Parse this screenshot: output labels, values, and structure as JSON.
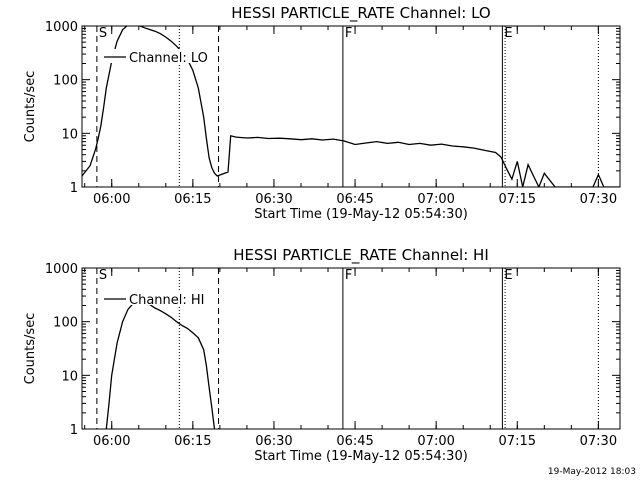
{
  "footer_timestamp": "19-May-2012 18:03",
  "chart_data": [
    {
      "type": "line",
      "title": "HESSI PARTICLE_RATE Channel: LO",
      "xlabel": "Start Time (19-May-12 05:54:30)",
      "ylabel": "Counts/sec",
      "yscale": "log",
      "ylim": [
        1,
        1000
      ],
      "xlim": [
        "05:54:30",
        "07:34:00"
      ],
      "x_ticks": [
        "06:00",
        "06:15",
        "06:30",
        "06:45",
        "07:00",
        "07:15",
        "07:30"
      ],
      "y_ticks": [
        "1",
        "10",
        "100",
        "1000"
      ],
      "legend": "Channel: LO",
      "legend_position": "top-left",
      "grid": false,
      "markers": [
        {
          "label": "S",
          "time": "05:57:15",
          "style": "dashed"
        },
        {
          "label": "",
          "time": "06:19:45",
          "style": "dashed"
        },
        {
          "label": "",
          "time": "06:12:30",
          "style": "dotted"
        },
        {
          "label": "F",
          "time": "06:42:45",
          "style": "solid"
        },
        {
          "label": "E",
          "time": "07:12:15",
          "style": "solid"
        },
        {
          "label": "",
          "time": "07:12:45",
          "style": "dotted"
        },
        {
          "label": "",
          "time": "07:30:00",
          "style": "dotted"
        }
      ],
      "series": [
        {
          "name": "Channel: LO",
          "x": [
            "05:54:30",
            "05:56:00",
            "05:57:00",
            "05:57:30",
            "05:58:00",
            "05:58:30",
            "05:59:00",
            "06:00:00",
            "06:01:00",
            "06:02:00",
            "06:03:00",
            "06:04:00",
            "06:05:00",
            "06:06:00",
            "06:07:00",
            "06:08:00",
            "06:09:00",
            "06:10:00",
            "06:11:00",
            "06:12:00",
            "06:13:00",
            "06:14:00",
            "06:15:00",
            "06:16:00",
            "06:17:00",
            "06:17:30",
            "06:18:00",
            "06:18:30",
            "06:19:00",
            "06:19:30",
            "06:21:30",
            "06:22:00",
            "06:23:00",
            "06:25:00",
            "06:27:00",
            "06:29:00",
            "06:31:00",
            "06:33:00",
            "06:35:00",
            "06:37:00",
            "06:39:00",
            "06:41:00",
            "06:43:00",
            "06:45:00",
            "06:47:00",
            "06:49:00",
            "06:51:00",
            "06:53:00",
            "06:55:00",
            "06:57:00",
            "06:59:00",
            "07:01:00",
            "07:03:00",
            "07:05:00",
            "07:07:00",
            "07:09:00",
            "07:11:00",
            "07:12:00",
            "07:13:00",
            "07:14:00",
            "07:15:00",
            "07:16:00",
            "07:17:00",
            "07:18:00",
            "07:19:00",
            "07:20:00",
            "07:22:00",
            "07:24:00",
            "07:26:00",
            "07:28:00",
            "07:29:00",
            "07:30:00",
            "07:31:00",
            "07:32:00",
            "07:34:00"
          ],
          "y": [
            1.6,
            2.5,
            5,
            8,
            14,
            30,
            70,
            220,
            520,
            850,
            1050,
            1100,
            1020,
            930,
            860,
            800,
            720,
            620,
            520,
            420,
            330,
            240,
            150,
            70,
            20,
            8,
            3.5,
            2.3,
            1.8,
            1.6,
            1.9,
            9,
            8.5,
            8.2,
            8.4,
            8.0,
            8.1,
            7.9,
            7.6,
            7.9,
            7.5,
            7.8,
            7.2,
            6.2,
            6.6,
            7.0,
            6.5,
            6.8,
            6.2,
            6.5,
            6.0,
            6.3,
            5.8,
            5.6,
            5.3,
            4.8,
            4.4,
            3.6,
            2.2,
            1.4,
            3.0,
            1.0,
            2.6,
            1.6,
            1.0,
            1.8,
            1.0,
            1.0,
            1.0,
            1.0,
            1.0,
            1.7,
            1.0,
            1.0,
            1.0
          ]
        }
      ]
    },
    {
      "type": "line",
      "title": "HESSI PARTICLE_RATE Channel: HI",
      "xlabel": "Start Time (19-May-12 05:54:30)",
      "ylabel": "Counts/sec",
      "yscale": "log",
      "ylim": [
        1,
        1000
      ],
      "xlim": [
        "05:54:30",
        "07:34:00"
      ],
      "x_ticks": [
        "06:00",
        "06:15",
        "06:30",
        "06:45",
        "07:00",
        "07:15",
        "07:30"
      ],
      "y_ticks": [
        "1",
        "10",
        "100",
        "1000"
      ],
      "legend": "Channel: HI",
      "legend_position": "top-left",
      "grid": false,
      "markers": [
        {
          "label": "S",
          "time": "05:57:15",
          "style": "dashed"
        },
        {
          "label": "",
          "time": "06:19:45",
          "style": "dashed"
        },
        {
          "label": "",
          "time": "06:12:30",
          "style": "dotted"
        },
        {
          "label": "F",
          "time": "06:42:45",
          "style": "solid"
        },
        {
          "label": "E",
          "time": "07:12:15",
          "style": "solid"
        },
        {
          "label": "",
          "time": "07:12:45",
          "style": "dotted"
        },
        {
          "label": "",
          "time": "07:30:00",
          "style": "dotted"
        }
      ],
      "series": [
        {
          "name": "Channel: HI",
          "x": [
            "05:59:00",
            "05:59:30",
            "06:00:00",
            "06:01:00",
            "06:02:00",
            "06:03:00",
            "06:04:00",
            "06:05:00",
            "06:06:00",
            "06:07:00",
            "06:08:00",
            "06:09:00",
            "06:10:00",
            "06:11:00",
            "06:12:00",
            "06:13:00",
            "06:14:00",
            "06:15:00",
            "06:16:00",
            "06:17:00",
            "06:17:30",
            "06:18:00",
            "06:18:30",
            "06:19:00"
          ],
          "y": [
            1.0,
            3,
            10,
            40,
            100,
            170,
            220,
            250,
            240,
            210,
            180,
            160,
            140,
            120,
            100,
            85,
            75,
            62,
            50,
            30,
            15,
            6,
            2.5,
            1.0
          ]
        }
      ]
    }
  ]
}
